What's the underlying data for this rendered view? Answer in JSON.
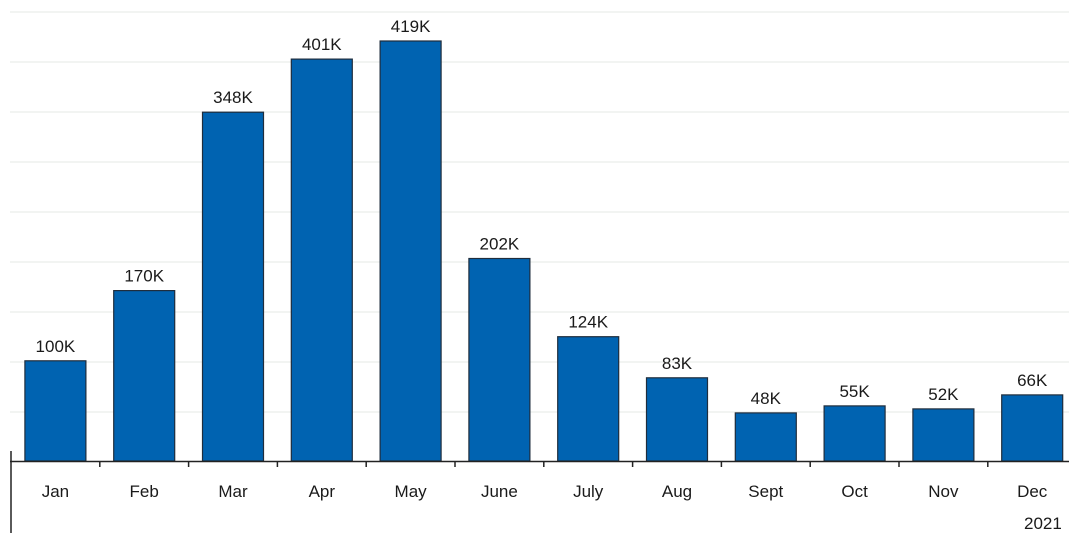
{
  "chart_data": {
    "type": "bar",
    "categories": [
      "Jan",
      "Feb",
      "Mar",
      "Apr",
      "May",
      "June",
      "July",
      "Aug",
      "Sept",
      "Oct",
      "Nov",
      "Dec"
    ],
    "values": [
      100000,
      170000,
      348000,
      401000,
      419000,
      202000,
      124000,
      83000,
      48000,
      55000,
      52000,
      66000
    ],
    "data_labels": [
      "100K",
      "170K",
      "348K",
      "401K",
      "419K",
      "202K",
      "124K",
      "83K",
      "48K",
      "55K",
      "52K",
      "66K"
    ],
    "year_label": "2021",
    "ylim": [
      0,
      440000
    ],
    "grid": true,
    "bar_color": "#0063b1",
    "bar_border_color": "#1f2d3d",
    "grid_color": "#f2f4f2",
    "axis_color": "#222222"
  }
}
